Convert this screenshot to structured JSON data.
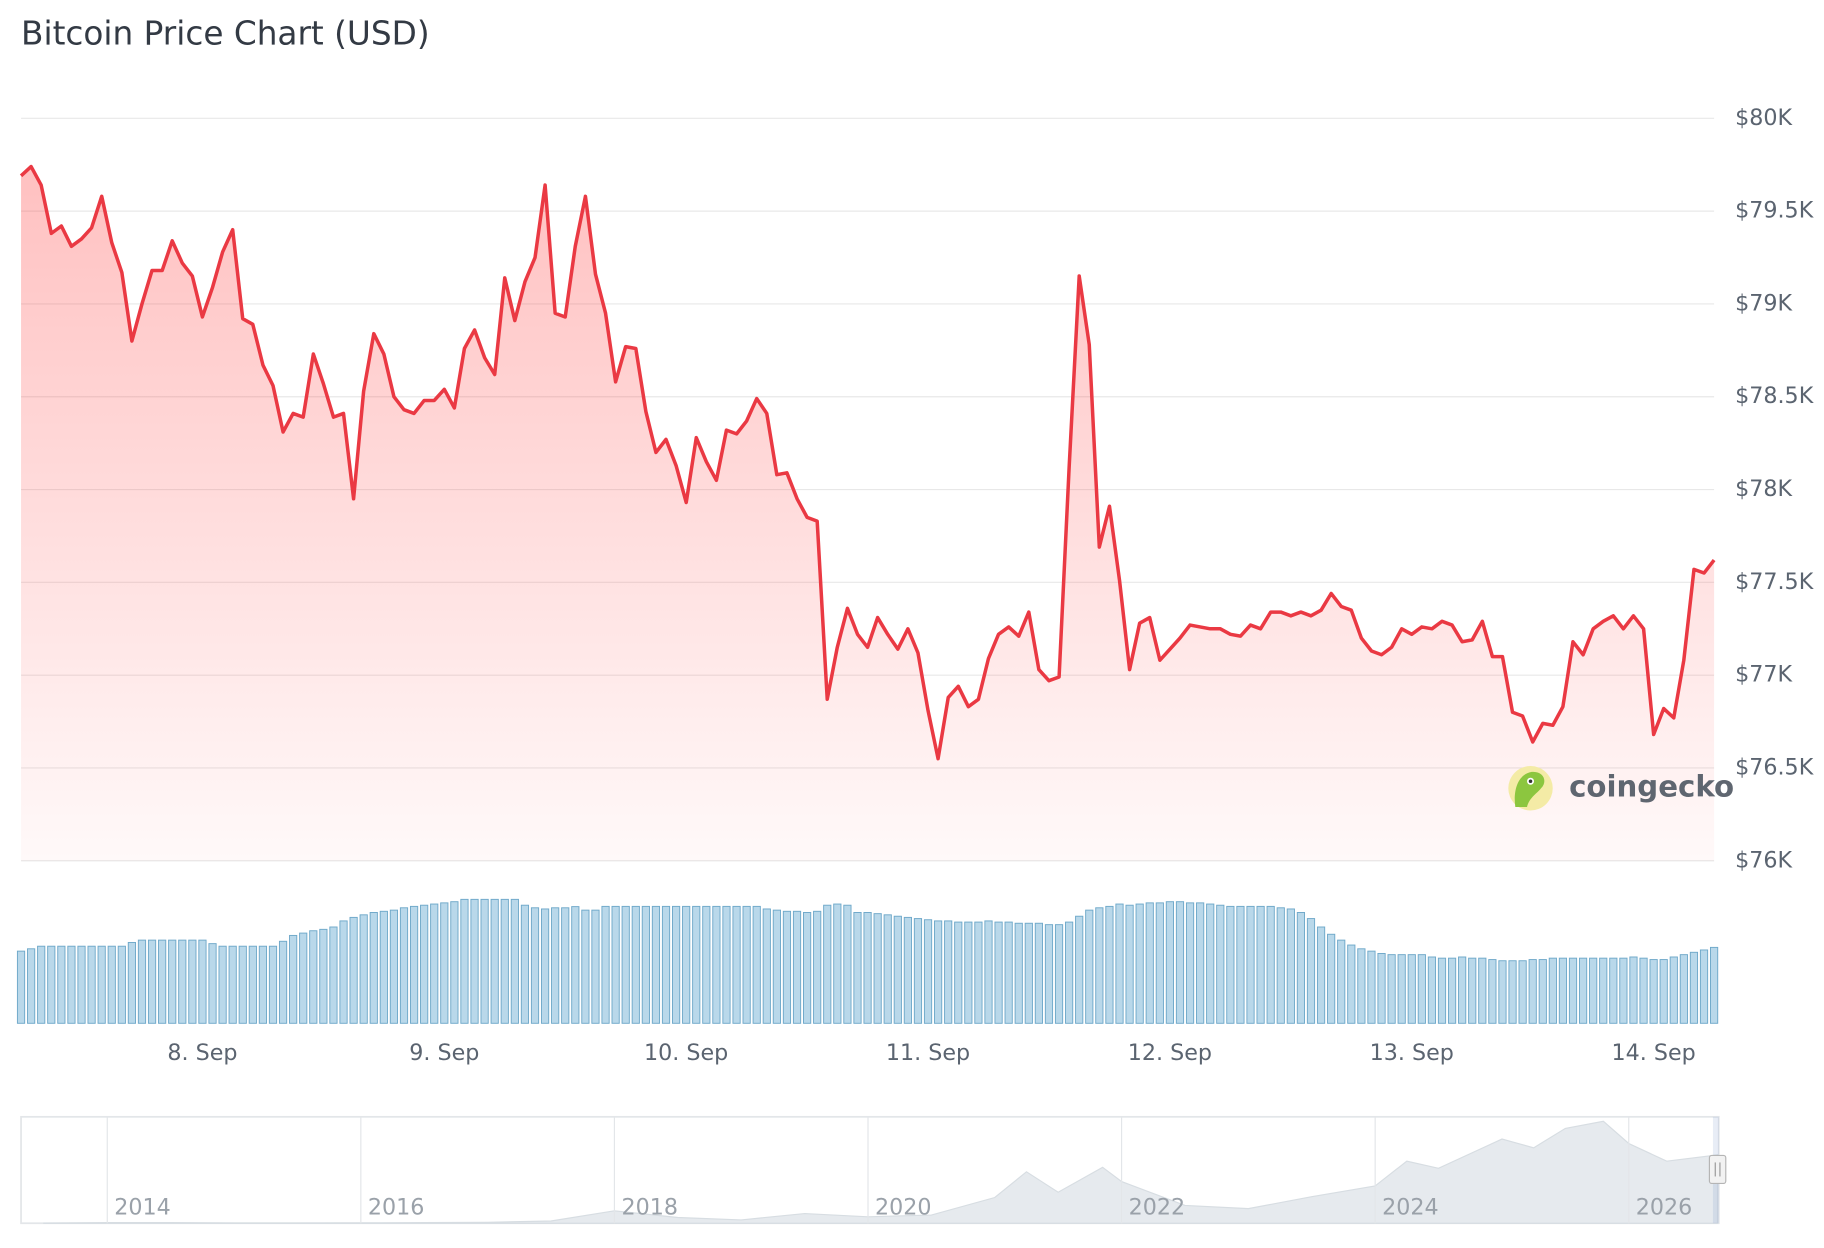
{
  "chart_data": {
    "type": "line",
    "title": "Bitcoin Price Chart (USD)",
    "categories": [
      null,
      null,
      null,
      null,
      null,
      null,
      null,
      null,
      null,
      null,
      null,
      null,
      null,
      null,
      null,
      null,
      null,
      null,
      "8. Sep",
      null,
      null,
      null,
      null,
      null,
      null,
      null,
      null,
      null,
      null,
      null,
      null,
      null,
      null,
      null,
      null,
      null,
      null,
      null,
      null,
      null,
      null,
      null,
      "9. Sep",
      null,
      null,
      null,
      null,
      null,
      null,
      null,
      null,
      null,
      null,
      null,
      null,
      null,
      null,
      null,
      null,
      null,
      null,
      null,
      null,
      null,
      null,
      null,
      "10. Sep",
      null,
      null,
      null,
      null,
      null,
      null,
      null,
      null,
      null,
      null,
      null,
      null,
      null,
      null,
      null,
      null,
      null,
      null,
      null,
      null,
      null,
      null,
      null,
      "11. Sep",
      null,
      null,
      null,
      null,
      null,
      null,
      null,
      null,
      null,
      null,
      null,
      null,
      null,
      null,
      null,
      null,
      null,
      null,
      null,
      null,
      null,
      null,
      null,
      "12. Sep",
      null,
      null,
      null,
      null,
      null,
      null,
      null,
      null,
      null,
      null,
      null,
      null,
      null,
      null,
      null,
      null,
      null,
      null,
      null,
      null,
      null,
      null,
      null,
      "13. Sep",
      null,
      null,
      null,
      null,
      null,
      null,
      null,
      null,
      null,
      null,
      null,
      null,
      null,
      null,
      null,
      null,
      null,
      null,
      null,
      null,
      null,
      null,
      null,
      "14. Sep",
      null,
      null,
      null,
      null,
      null,
      null
    ],
    "values": [
      79690,
      79740,
      79640,
      79380,
      79420,
      79310,
      79350,
      79410,
      79580,
      79330,
      79170,
      78800,
      79000,
      79180,
      79180,
      79340,
      79220,
      79150,
      78930,
      79090,
      79280,
      79400,
      78920,
      78890,
      78670,
      78560,
      78310,
      78410,
      78390,
      78730,
      78570,
      78390,
      78410,
      77950,
      78530,
      78840,
      78730,
      78500,
      78430,
      78410,
      78480,
      78480,
      78540,
      78440,
      78760,
      78860,
      78710,
      78620,
      79140,
      78910,
      79120,
      79250,
      79640,
      78950,
      78930,
      79310,
      79580,
      79160,
      78950,
      78580,
      78770,
      78760,
      78420,
      78200,
      78270,
      78130,
      77930,
      78280,
      78150,
      78050,
      78320,
      78300,
      78370,
      78490,
      78410,
      78080,
      78090,
      77950,
      77850,
      77830,
      76870,
      77150,
      77360,
      77220,
      77150,
      77310,
      77220,
      77140,
      77250,
      77120,
      76810,
      76550,
      76880,
      76940,
      76830,
      76870,
      77090,
      77220,
      77260,
      77210,
      77340,
      77030,
      76970,
      76990,
      78120,
      79150,
      78780,
      77690,
      77910,
      77510,
      77030,
      77280,
      77310,
      77080,
      77140,
      77200,
      77270,
      77260,
      77250,
      77250,
      77220,
      77210,
      77270,
      77250,
      77340,
      77340,
      77320,
      77340,
      77320,
      77350,
      77440,
      77370,
      77350,
      77200,
      77130,
      77110,
      77150,
      77250,
      77220,
      77260,
      77250,
      77290,
      77270,
      77180,
      77190,
      77290,
      77100,
      77100,
      76800,
      76780,
      76640,
      76740,
      76730,
      76830,
      77180,
      77110,
      77250,
      77290,
      77320,
      77250,
      77320,
      77250,
      76680,
      76820,
      76770,
      77080,
      77570,
      77550,
      77620
    ],
    "color": "#ea3943",
    "volumes": [
      30.8,
      31.8,
      32.9,
      32.9,
      32.9,
      32.9,
      32.9,
      32.9,
      32.9,
      32.9,
      32.9,
      34.5,
      35.5,
      35.5,
      35.5,
      35.5,
      35.5,
      35.5,
      35.5,
      34.0,
      32.9,
      32.9,
      32.9,
      32.9,
      32.9,
      32.9,
      35.0,
      37.5,
      38.5,
      39.5,
      40.1,
      41.1,
      43.7,
      45.2,
      46.3,
      47.3,
      47.8,
      48.3,
      49.3,
      49.9,
      50.4,
      50.9,
      51.4,
      51.9,
      52.9,
      52.9,
      52.9,
      52.9,
      52.9,
      52.9,
      50.4,
      49.3,
      48.8,
      49.3,
      49.3,
      49.8,
      48.3,
      48.3,
      49.9,
      49.9,
      49.9,
      49.9,
      49.9,
      49.9,
      49.9,
      49.9,
      49.9,
      49.9,
      49.9,
      49.9,
      49.9,
      49.9,
      49.9,
      49.9,
      48.8,
      48.3,
      47.8,
      47.8,
      47.3,
      47.8,
      50.4,
      50.9,
      50.4,
      47.3,
      47.3,
      46.8,
      46.3,
      45.7,
      45.2,
      44.7,
      44.2,
      43.7,
      43.7,
      43.2,
      43.2,
      43.2,
      43.7,
      43.2,
      43.2,
      42.7,
      42.7,
      42.7,
      42.1,
      42.1,
      43.2,
      45.7,
      48.3,
      49.3,
      49.9,
      50.9,
      50.4,
      50.9,
      51.4,
      51.4,
      51.9,
      51.9,
      51.4,
      51.4,
      50.9,
      50.4,
      49.9,
      49.9,
      49.9,
      49.9,
      49.9,
      49.3,
      48.8,
      47.3,
      44.7,
      41.1,
      38.0,
      35.5,
      33.4,
      31.8,
      30.8,
      29.8,
      29.3,
      29.3,
      29.3,
      29.3,
      28.3,
      27.8,
      27.8,
      28.3,
      27.8,
      27.8,
      27.2,
      26.7,
      26.7,
      26.7,
      27.2,
      27.2,
      27.8,
      27.8,
      27.8,
      27.8,
      27.8,
      27.8,
      27.8,
      27.8,
      28.3,
      27.8,
      27.2,
      27.2,
      28.3,
      29.3,
      30.3,
      31.3,
      32.4
    ],
    "volume_color": "#b9d8ea",
    "ylim": [
      76000,
      80000
    ],
    "yticks": [
      {
        "value": 76000,
        "label": "$76K"
      },
      {
        "value": 76500,
        "label": "$76.5K"
      },
      {
        "value": 77000,
        "label": "$77K"
      },
      {
        "value": 77500,
        "label": "$77.5K"
      },
      {
        "value": 78000,
        "label": "$78K"
      },
      {
        "value": 78500,
        "label": "$78.5K"
      },
      {
        "value": 79000,
        "label": "$79K"
      },
      {
        "value": 79500,
        "label": "$79.5K"
      },
      {
        "value": 80000,
        "label": "$80K"
      }
    ],
    "grid": true,
    "watermark": "coingecko",
    "navigator": {
      "x": [
        2013.5,
        2014.0,
        2014.5,
        2015.0,
        2015.5,
        2016.0,
        2016.5,
        2017.0,
        2017.5,
        2018.0,
        2018.5,
        2019.0,
        2019.5,
        2020.0,
        2020.5,
        2021.0,
        2021.25,
        2021.5,
        2021.85,
        2022.0,
        2022.5,
        2023.0,
        2023.5,
        2024.0,
        2024.25,
        2024.5,
        2025.0,
        2025.25,
        2025.5,
        2025.8,
        2026.0,
        2026.3,
        2026.7
      ],
      "values": [
        100,
        800,
        600,
        300,
        250,
        400,
        650,
        1000,
        2500,
        14000,
        6500,
        3700,
        11000,
        7200,
        9200,
        29000,
        58000,
        35000,
        63000,
        47000,
        20000,
        16500,
        30000,
        42000,
        70000,
        62000,
        95000,
        85000,
        107000,
        115000,
        90000,
        70000,
        77000
      ],
      "xlim": [
        2013.32,
        2026.71
      ],
      "xticks": [
        2014,
        2016,
        2018,
        2020,
        2022,
        2024,
        2026
      ],
      "ylim": [
        0,
        120000
      ],
      "color": "#e6eaee"
    }
  }
}
